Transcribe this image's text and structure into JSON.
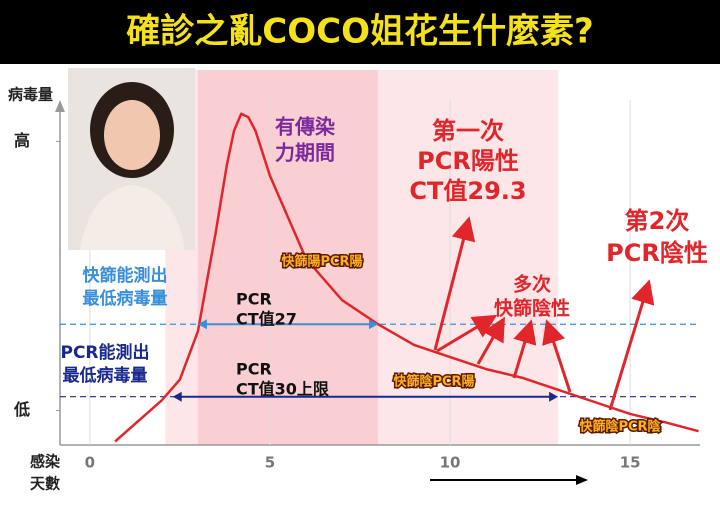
{
  "chart_data": {
    "type": "line",
    "title": "確診之亂COCO姐花生什麼素?",
    "y_label": "病毒量",
    "x_label": [
      "感染",
      "天數"
    ],
    "x": [
      0.7,
      1,
      2,
      2.5,
      3,
      3.5,
      3.8,
      4,
      4.2,
      4.4,
      4.6,
      5,
      6,
      7,
      8,
      9,
      10,
      11,
      12,
      13,
      14,
      15,
      16,
      16.9
    ],
    "values": [
      1,
      3.8,
      13,
      19,
      33,
      62,
      81,
      91,
      96,
      95,
      91,
      78,
      54,
      42,
      35,
      29,
      25.5,
      22,
      19.5,
      16,
      12.5,
      9,
      6.5,
      4
    ],
    "color": "#e0262b",
    "xlim": [
      -0.83,
      16.94
    ],
    "xticks": [
      0,
      5,
      10,
      15
    ],
    "ylim": [
      0,
      100
    ],
    "yticks": [
      {
        "value": 88,
        "label": "高"
      },
      {
        "value": 10,
        "label": "低"
      }
    ],
    "spans": [
      {
        "from": 2.1,
        "to": 13,
        "color": "#fce6e8"
      },
      {
        "from": 3,
        "to": 8,
        "color": "#f9cfd4",
        "label": [
          "有傳染",
          "力期間"
        ]
      }
    ],
    "reference_lines": [
      {
        "value": 35,
        "color": "#3a8fd9",
        "label": [
          "快篩能測出",
          "最低病毒量"
        ]
      },
      {
        "value": 14,
        "color": "#1a2a8c",
        "label": [
          "PCR能測出",
          "最低病毒量"
        ]
      }
    ],
    "ranges": [
      {
        "from": 3,
        "to": 8,
        "value": 35,
        "color": "#3a8fd9",
        "label": [
          "PCR",
          "CT值27"
        ]
      },
      {
        "from": 2.3,
        "to": 13,
        "value": 14,
        "color": "#1a2a8c",
        "label": [
          "PCR",
          "CT值30上限"
        ]
      }
    ],
    "annotations": [
      {
        "lines": [
          "第一次",
          "PCR陽性",
          "CT值29.3"
        ]
      },
      {
        "lines": [
          "第2次",
          "PCR陰性"
        ]
      },
      {
        "lines": [
          "多次",
          "快篩陰性"
        ]
      },
      {
        "lines": [
          "快篩陽PCR陽"
        ]
      },
      {
        "lines": [
          "快篩陰PCR陽"
        ]
      },
      {
        "lines": [
          "快篩陰PCR陰"
        ]
      }
    ]
  }
}
